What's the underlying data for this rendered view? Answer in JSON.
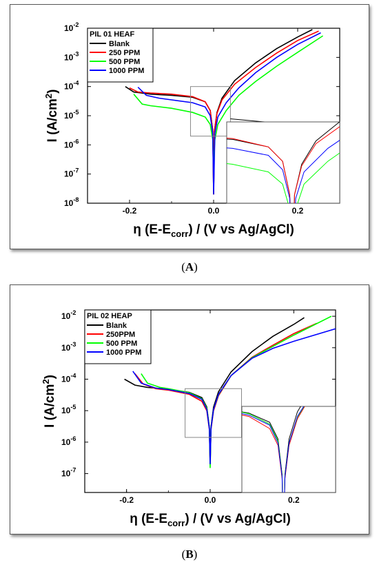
{
  "captions": {
    "a_label": "A",
    "b_label": "B"
  },
  "chart_data": [
    {
      "type": "line",
      "panel": "A",
      "legend_title": "PIL 01 HEAF",
      "legend_placement": "top-left",
      "xlabel_main": "η (E-E",
      "xlabel_sub": "corr",
      "xlabel_tail": ") / (V vs Ag/AgCl)",
      "ylabel_main": "I (A/cm",
      "ylabel_sup": "2",
      "ylabel_tail": ")",
      "xlim": [
        -0.3,
        0.3
      ],
      "ylim_log10": [
        -8,
        -2
      ],
      "xticks": [
        {
          "v": -0.2,
          "label": "-0.2"
        },
        {
          "v": 0.0,
          "label": "0.0"
        },
        {
          "v": 0.2,
          "label": "0.2"
        }
      ],
      "yticks": [
        {
          "e": -8,
          "label": "-8"
        },
        {
          "e": -7,
          "label": "-7"
        },
        {
          "e": -6,
          "label": "-6"
        },
        {
          "e": -5,
          "label": "-5"
        },
        {
          "e": -4,
          "label": "-4"
        },
        {
          "e": -3,
          "label": "-3"
        },
        {
          "e": -2,
          "label": "-2"
        }
      ],
      "inset_region": {
        "x": [
          -0.055,
          0.04
        ],
        "log_y": [
          -5.7,
          -4.0
        ]
      },
      "series": [
        {
          "name": "Blank",
          "color": "#000000",
          "x": [
            -0.21,
            -0.19,
            -0.15,
            -0.1,
            -0.05,
            -0.02,
            -0.008,
            -0.002,
            0.0,
            0.002,
            0.008,
            0.02,
            0.05,
            0.1,
            0.15,
            0.2,
            0.235
          ],
          "y": [
            0.0001,
            6.5e-05,
            5.5e-05,
            5e-05,
            4.3e-05,
            3e-05,
            1.5e-05,
            3e-06,
            2e-08,
            3e-06,
            1.3e-05,
            4e-05,
            0.00016,
            0.00065,
            0.002,
            0.005,
            0.009
          ]
        },
        {
          "name": "250 PPM",
          "color": "#ff0000",
          "x": [
            -0.2,
            -0.18,
            -0.15,
            -0.1,
            -0.05,
            -0.02,
            -0.008,
            -0.002,
            0.0,
            0.002,
            0.008,
            0.02,
            0.05,
            0.1,
            0.15,
            0.2,
            0.25
          ],
          "y": [
            9e-05,
            6.5e-05,
            6e-05,
            5.5e-05,
            4.5e-05,
            3e-05,
            1.5e-05,
            3e-06,
            2e-08,
            3e-06,
            1.2e-05,
            3.5e-05,
            0.00012,
            0.00045,
            0.0014,
            0.0038,
            0.008
          ]
        },
        {
          "name": "500 PPM",
          "color": "#00ff00",
          "x": [
            -0.19,
            -0.17,
            -0.15,
            -0.1,
            -0.05,
            -0.02,
            -0.008,
            -0.002,
            0.0,
            0.003,
            0.01,
            0.03,
            0.06,
            0.1,
            0.15,
            0.2,
            0.26
          ],
          "y": [
            5.5e-05,
            2.5e-05,
            2.2e-05,
            1.8e-05,
            1.3e-05,
            9e-06,
            5e-06,
            1.5e-06,
            2e-07,
            1.5e-06,
            5e-06,
            1.5e-05,
            5e-05,
            0.00015,
            0.0005,
            0.0015,
            0.0055
          ]
        },
        {
          "name": "1000 PPM",
          "color": "#0000ff",
          "x": [
            -0.18,
            -0.16,
            -0.13,
            -0.1,
            -0.05,
            -0.02,
            -0.008,
            -0.002,
            0.0,
            0.003,
            0.01,
            0.03,
            0.06,
            0.1,
            0.15,
            0.2,
            0.255
          ],
          "y": [
            9.5e-05,
            5e-05,
            4e-05,
            3.5e-05,
            2.8e-05,
            2e-05,
            1e-05,
            2.5e-06,
            2e-08,
            2.5e-06,
            9e-06,
            2.8e-05,
            9e-05,
            0.0003,
            0.001,
            0.0028,
            0.007
          ]
        }
      ]
    },
    {
      "type": "line",
      "panel": "B",
      "legend_title": "PIL 02 HEAP",
      "legend_placement": "top-left",
      "xlabel_main": "η (E-E",
      "xlabel_sub": "corr",
      "xlabel_tail": ") / (V vs Ag/AgCl)",
      "ylabel_main": "I (A/cm",
      "ylabel_sup": "2",
      "ylabel_tail": ")",
      "xlim": [
        -0.3,
        0.3
      ],
      "ylim_log10": [
        -7.6,
        -1.8
      ],
      "xticks": [
        {
          "v": -0.2,
          "label": "-0.2"
        },
        {
          "v": 0.0,
          "label": "0.0"
        },
        {
          "v": 0.2,
          "label": "0.2"
        }
      ],
      "yticks": [
        {
          "e": -7,
          "label": "-7"
        },
        {
          "e": -6,
          "label": "-6"
        },
        {
          "e": -5,
          "label": "-5"
        },
        {
          "e": -4,
          "label": "-4"
        },
        {
          "e": -3,
          "label": "-3"
        },
        {
          "e": -2,
          "label": "-2"
        }
      ],
      "inset_region": {
        "x": [
          -0.06,
          0.075
        ],
        "log_y": [
          -5.85,
          -4.3
        ]
      },
      "series": [
        {
          "name": "Blank",
          "color": "#000000",
          "x": [
            -0.205,
            -0.18,
            -0.15,
            -0.1,
            -0.05,
            -0.02,
            -0.008,
            -0.002,
            0.0,
            0.002,
            0.008,
            0.02,
            0.05,
            0.1,
            0.15,
            0.2,
            0.225
          ],
          "y": [
            0.0001,
            6.5e-05,
            5.5e-05,
            4.8e-05,
            3.8e-05,
            2.6e-05,
            1.3e-05,
            3e-06,
            2e-07,
            3e-06,
            1.3e-05,
            4e-05,
            0.00017,
            0.00075,
            0.0023,
            0.0055,
            0.009
          ]
        },
        {
          "name": "250PPM",
          "color": "#ff0000",
          "x": [
            -0.18,
            -0.16,
            -0.13,
            -0.1,
            -0.05,
            -0.02,
            -0.008,
            -0.002,
            0.0,
            0.002,
            0.008,
            0.02,
            0.05,
            0.1,
            0.15,
            0.2,
            0.255
          ],
          "y": [
            0.00015,
            7e-05,
            5e-05,
            4.5e-05,
            3.3e-05,
            2e-05,
            1e-05,
            2.5e-06,
            2e-07,
            2.5e-06,
            1e-05,
            3e-05,
            0.00013,
            0.0005,
            0.0012,
            0.0028,
            0.006
          ]
        },
        {
          "name": "500 PPM",
          "color": "#00ff00",
          "x": [
            -0.165,
            -0.15,
            -0.12,
            -0.1,
            -0.05,
            -0.02,
            -0.008,
            -0.002,
            0.0,
            0.002,
            0.008,
            0.02,
            0.05,
            0.1,
            0.15,
            0.2,
            0.29
          ],
          "y": [
            0.00015,
            7.5e-05,
            5.5e-05,
            5e-05,
            3.7e-05,
            2.4e-05,
            1.2e-05,
            2.8e-06,
            1.5e-07,
            2.8e-06,
            1.1e-05,
            3.2e-05,
            0.00013,
            0.00048,
            0.0011,
            0.0025,
            0.01
          ]
        },
        {
          "name": "1000 PPM",
          "color": "#0000ff",
          "x": [
            -0.185,
            -0.165,
            -0.13,
            -0.1,
            -0.05,
            -0.02,
            -0.008,
            -0.002,
            0.0,
            0.002,
            0.008,
            0.02,
            0.05,
            0.1,
            0.15,
            0.2,
            0.3
          ],
          "y": [
            0.00018,
            7.5e-05,
            5.2e-05,
            4.7e-05,
            3.5e-05,
            2.3e-05,
            1.1e-05,
            2.7e-06,
            2e-07,
            2.7e-06,
            1.1e-05,
            3.3e-05,
            0.00013,
            0.00046,
            0.00095,
            0.0016,
            0.004
          ]
        }
      ]
    }
  ]
}
